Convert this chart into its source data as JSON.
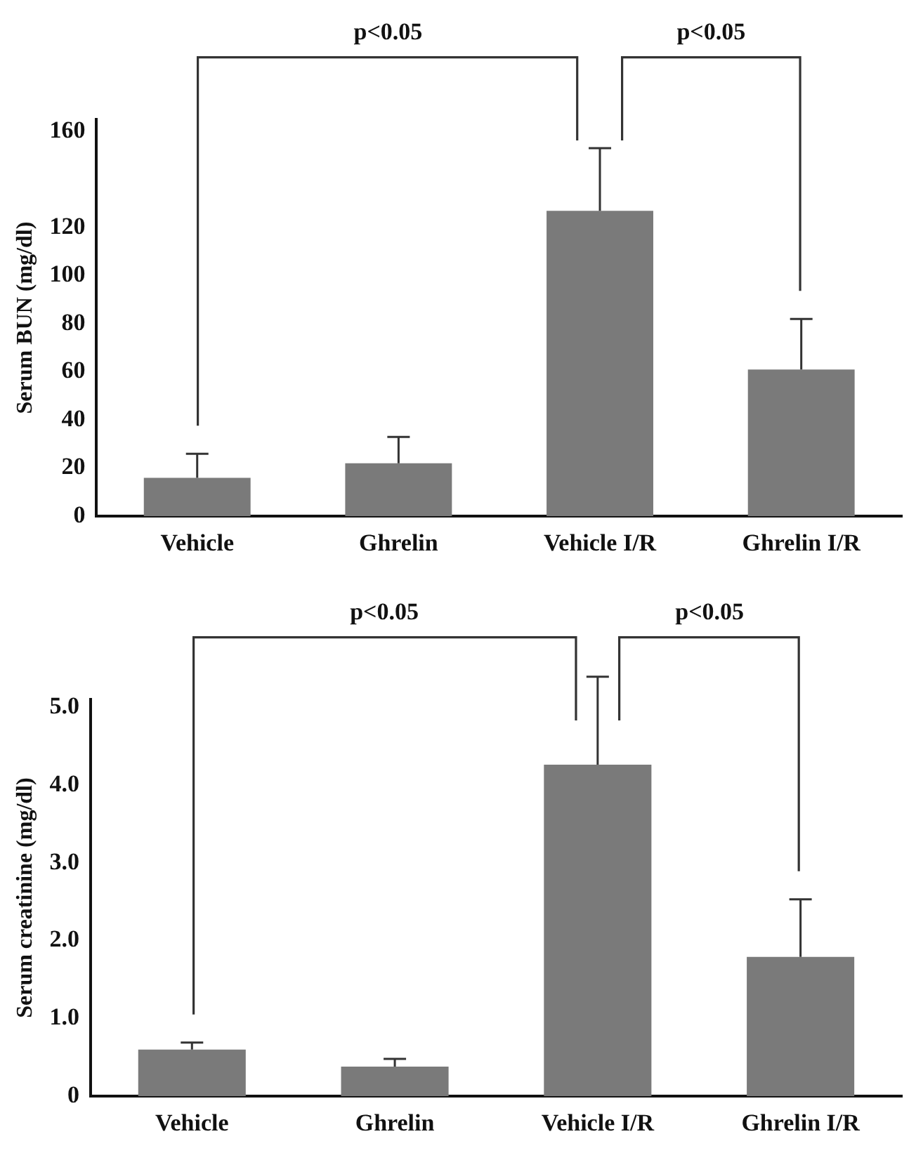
{
  "chart_data": [
    {
      "type": "bar",
      "ylabel": "Serum BUN (mg/dl)",
      "categories": [
        "Vehicle",
        "Ghrelin",
        "Vehicle I/R",
        "Ghrelin I/R"
      ],
      "values": [
        16,
        22,
        127,
        61
      ],
      "color": "#7a7a7a",
      "errors": [
        [
          16,
          26
        ],
        [
          22,
          33
        ],
        [
          127,
          153
        ],
        [
          61,
          82
        ]
      ],
      "ylim": [
        0,
        165
      ],
      "yticks": [
        0,
        20,
        40,
        60,
        80,
        100,
        120,
        160
      ],
      "annotations": [
        "p<0.05",
        "p<0.05"
      ]
    },
    {
      "type": "bar",
      "ylabel": "Serum creatinine (mg/dl)",
      "categories": [
        "Vehicle",
        "Ghrelin",
        "Vehicle I/R",
        "Ghrelin I/R"
      ],
      "values": [
        0.6,
        0.38,
        4.26,
        1.79
      ],
      "color": "#7a7a7a",
      "errors": [
        [
          0.6,
          0.69
        ],
        [
          0.38,
          0.48
        ],
        [
          4.26,
          5.39
        ],
        [
          1.79,
          2.53
        ]
      ],
      "ylim": [
        0,
        5.1
      ],
      "yticks": [
        0,
        {
          "value": 1,
          "label": "1.0"
        },
        {
          "value": 2,
          "label": "2.0"
        },
        {
          "value": 3,
          "label": "3.0"
        },
        {
          "value": 4,
          "label": "4.0"
        },
        {
          "value": 5,
          "label": "5.0"
        }
      ],
      "annotations": [
        "p<0.05",
        "p<0.05"
      ]
    }
  ]
}
